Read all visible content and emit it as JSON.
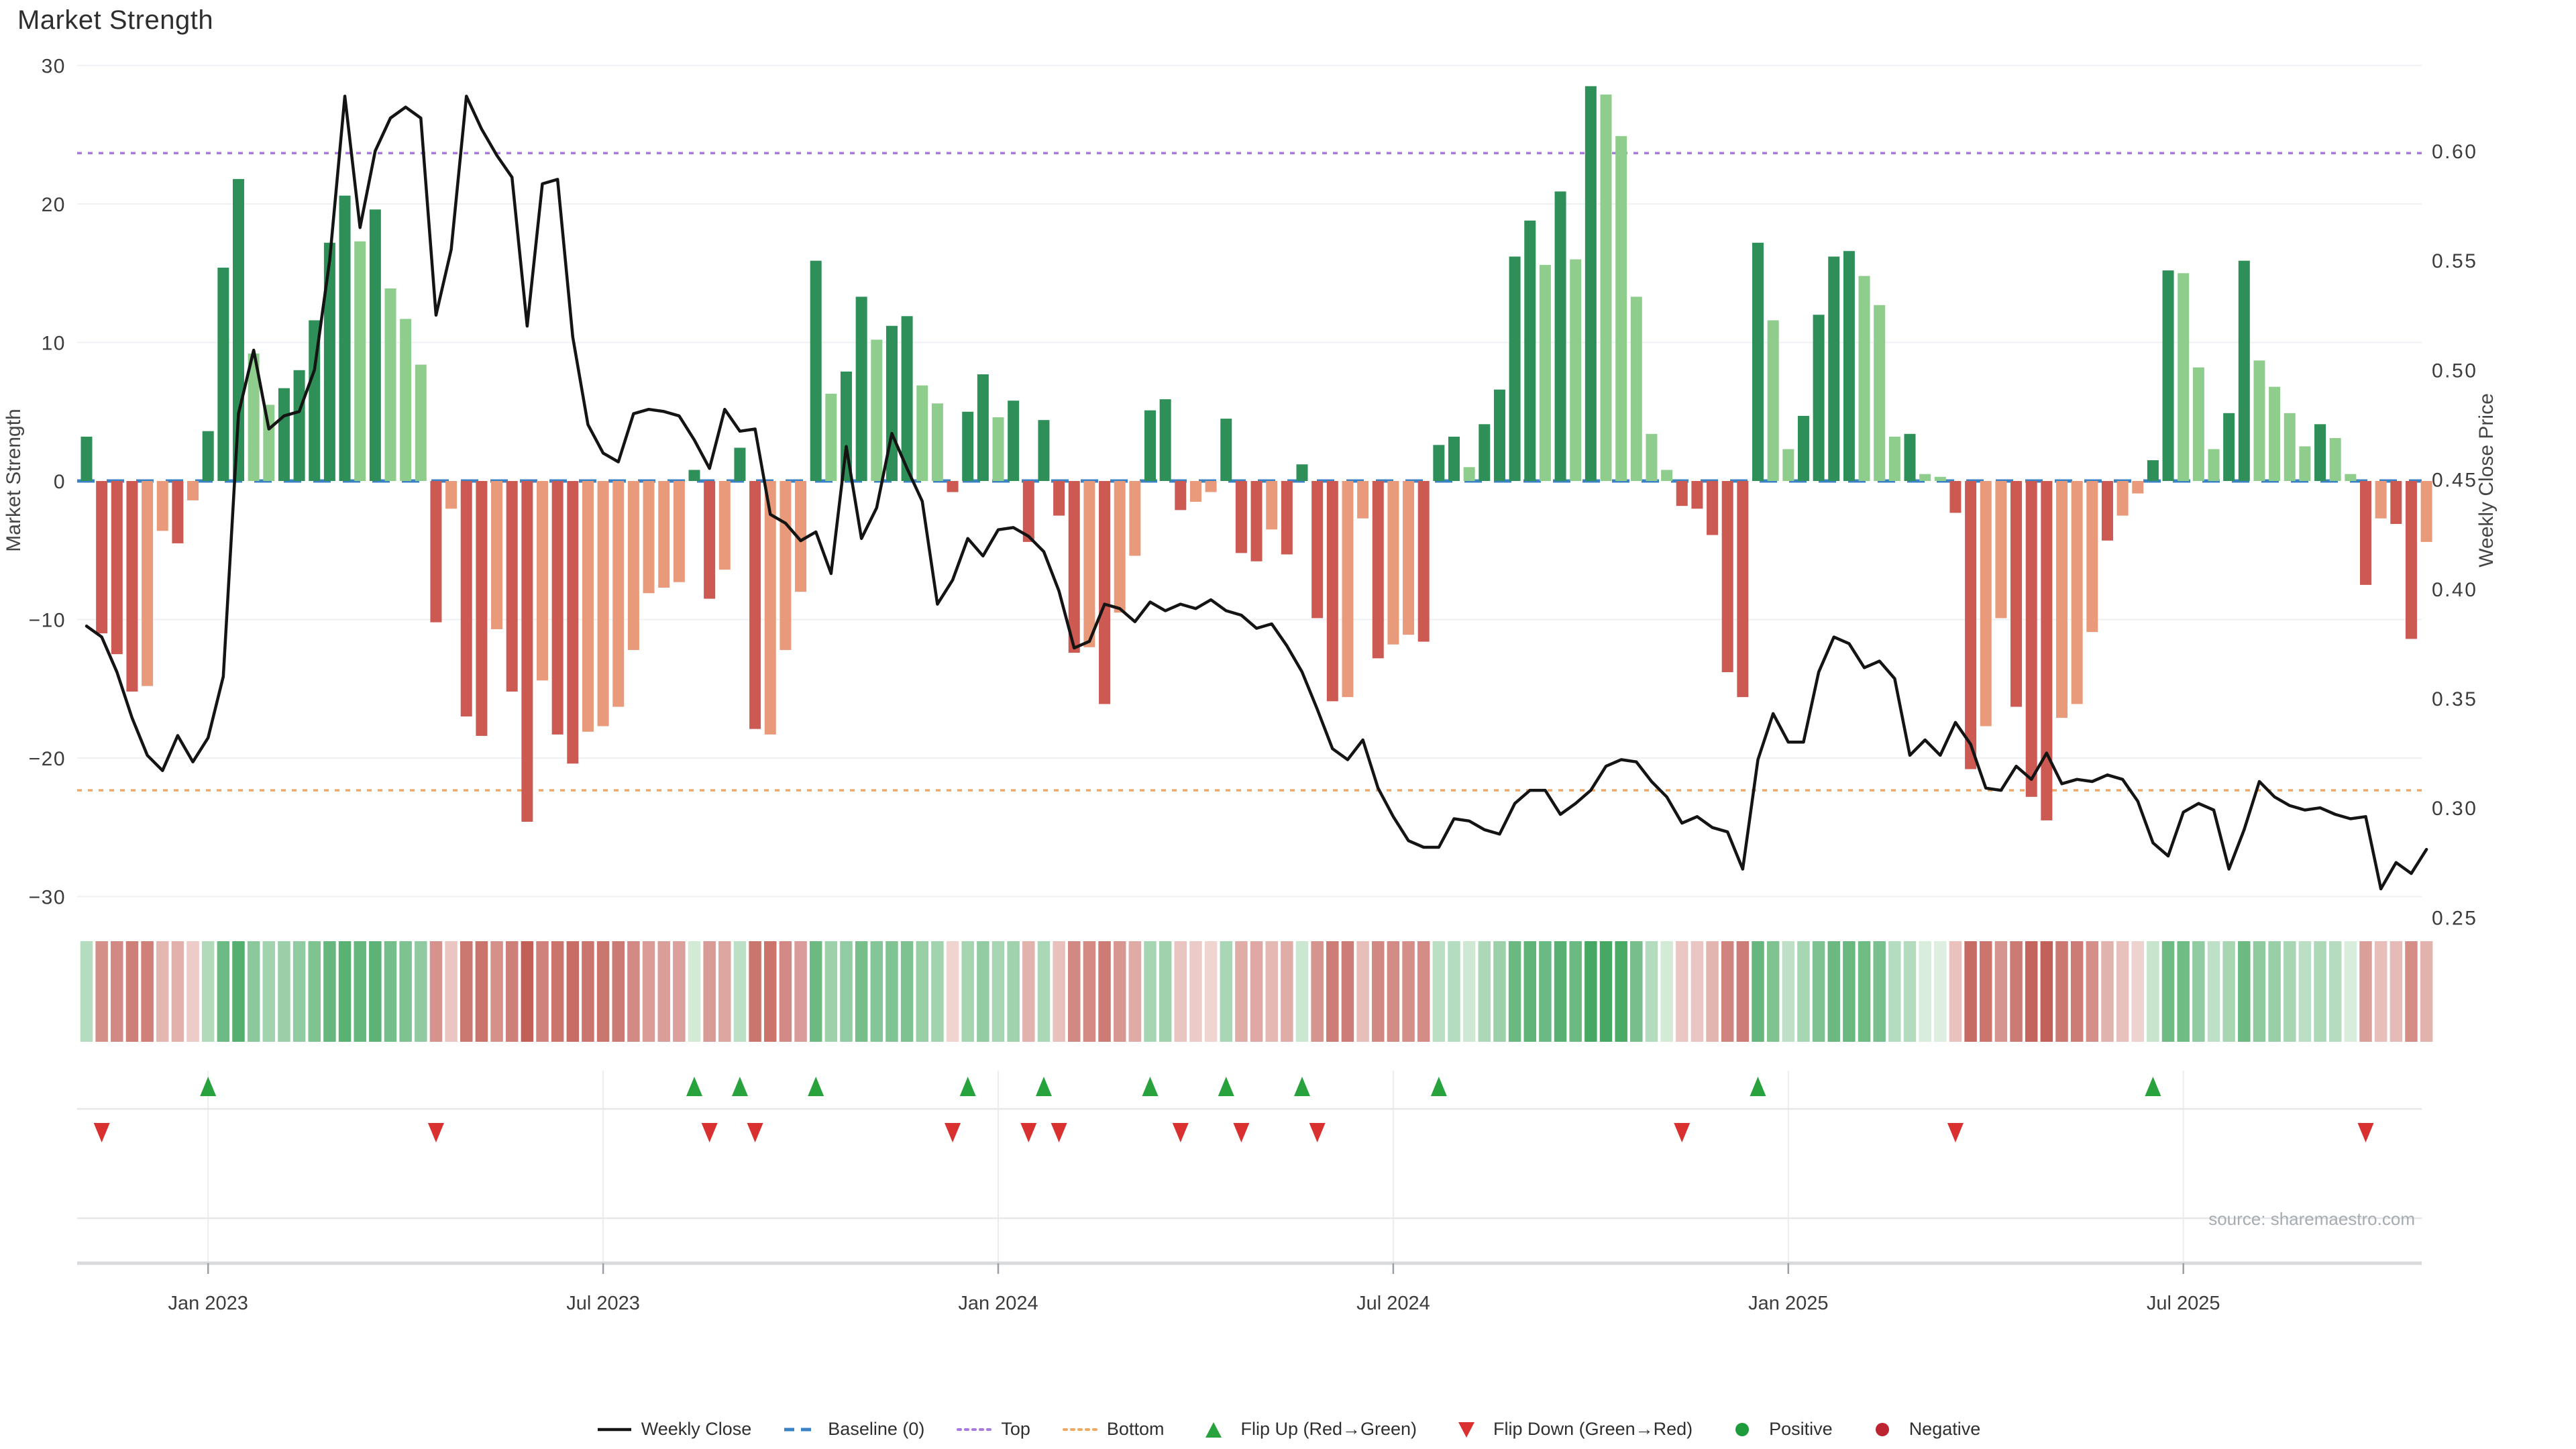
{
  "title": "Market Strength",
  "source_note": "source: sharemaestro.com",
  "legend": {
    "items": [
      {
        "label": "Weekly Close",
        "type": "line",
        "color": "#141414"
      },
      {
        "label": "Baseline (0)",
        "type": "dashed",
        "color": "#3b82c4"
      },
      {
        "label": "Top",
        "type": "dotted",
        "color": "#a879e0"
      },
      {
        "label": "Bottom",
        "type": "dotted",
        "color": "#f0a964"
      },
      {
        "label": "Flip Up (Red→Green)",
        "type": "triangle-up",
        "color": "#27a23c"
      },
      {
        "label": "Flip Down (Green→Red)",
        "type": "triangle-down",
        "color": "#d93030"
      },
      {
        "label": "Positive",
        "type": "circle",
        "color": "#1e9c3c"
      },
      {
        "label": "Negative",
        "type": "circle",
        "color": "#bc2432"
      }
    ]
  },
  "chart_data": {
    "type": "bar",
    "subtype": "weekly bars + price line + heatmap strip + flip markers",
    "title": "Market Strength",
    "start_date": "2022-11-07",
    "frequency": "weekly",
    "weeks": 155,
    "y_left": {
      "label": "Market Strength",
      "ticks": [
        30,
        20,
        10,
        0,
        -10,
        -20,
        -30
      ],
      "min": -30,
      "max": 30
    },
    "y_right": {
      "label": "Weekly Close Price",
      "ticks": [
        0.6,
        0.55,
        0.5,
        0.45,
        0.4,
        0.35,
        0.3,
        0.25
      ]
    },
    "x_ticks": [
      {
        "week": 9,
        "label": "Jan 2023"
      },
      {
        "week": 35,
        "label": "Jul 2023"
      },
      {
        "week": 61,
        "label": "Jan 2024"
      },
      {
        "week": 87,
        "label": "Jul 2024"
      },
      {
        "week": 113,
        "label": "Jan 2025"
      },
      {
        "week": 139,
        "label": "Jul 2025"
      }
    ],
    "baseline": {
      "label": "Baseline (0)",
      "value": 0
    },
    "top_line": {
      "label": "Top",
      "price": 0.599,
      "strength_equiv": 23.5
    },
    "bottom_line": {
      "label": "Bottom",
      "price": 0.308,
      "strength_equiv": -22.3
    },
    "strength": [
      3.2,
      -11.0,
      -12.5,
      -15.2,
      -14.8,
      -3.6,
      -4.5,
      -1.4,
      3.6,
      15.4,
      21.8,
      9.2,
      5.5,
      6.7,
      8.0,
      11.6,
      17.2,
      20.6,
      17.3,
      19.6,
      13.9,
      11.7,
      8.4,
      -10.2,
      -2.0,
      -17.0,
      -18.4,
      -10.7,
      -15.2,
      -24.6,
      -14.4,
      -18.3,
      -20.4,
      -18.1,
      -17.7,
      -16.3,
      -12.2,
      -8.1,
      -7.7,
      -7.3,
      0.8,
      -8.5,
      -6.4,
      2.4,
      -17.9,
      -18.3,
      -12.2,
      -8.0,
      15.9,
      6.3,
      7.9,
      13.3,
      10.2,
      11.2,
      11.9,
      6.9,
      5.6,
      -0.8,
      5.0,
      7.7,
      4.6,
      5.8,
      -4.4,
      4.4,
      -2.5,
      -12.4,
      -12.0,
      -16.1,
      -9.5,
      -5.4,
      5.1,
      5.9,
      -2.1,
      -1.5,
      -0.8,
      4.5,
      -5.2,
      -5.8,
      -3.5,
      -5.3,
      1.2,
      -9.9,
      -15.9,
      -15.6,
      -2.7,
      -12.8,
      -11.8,
      -11.1,
      -11.6,
      2.6,
      3.2,
      1.0,
      4.1,
      6.6,
      16.2,
      18.8,
      15.6,
      20.9,
      16.0,
      28.5,
      27.9,
      24.9,
      13.3,
      3.4,
      0.8,
      -1.8,
      -2.0,
      -3.9,
      -13.8,
      -15.6,
      17.2,
      11.6,
      2.3,
      4.7,
      12.0,
      16.2,
      16.6,
      14.8,
      12.7,
      3.2,
      3.4,
      0.5,
      0.3,
      -2.3,
      -20.8,
      -17.7,
      -9.9,
      -16.3,
      -22.8,
      -24.5,
      -17.1,
      -16.1,
      -10.9,
      -4.3,
      -2.5,
      -0.9,
      1.5,
      15.2,
      15.0,
      8.2,
      2.3,
      4.9,
      15.9,
      8.7,
      6.8,
      4.9,
      2.5,
      4.1,
      3.1,
      0.5,
      -7.5,
      -2.7,
      -3.1,
      -11.4,
      -4.4
    ],
    "tone": [
      "d",
      "r",
      "r",
      "r",
      "s",
      "s",
      "r",
      "s",
      "d",
      "d",
      "d",
      "l",
      "l",
      "d",
      "d",
      "d",
      "d",
      "d",
      "l",
      "d",
      "l",
      "l",
      "l",
      "r",
      "s",
      "r",
      "r",
      "s",
      "r",
      "r",
      "s",
      "r",
      "r",
      "s",
      "s",
      "s",
      "s",
      "s",
      "s",
      "s",
      "d",
      "r",
      "s",
      "d",
      "r",
      "s",
      "s",
      "s",
      "d",
      "l",
      "d",
      "d",
      "l",
      "d",
      "d",
      "l",
      "l",
      "r",
      "d",
      "d",
      "l",
      "d",
      "r",
      "d",
      "r",
      "r",
      "s",
      "r",
      "s",
      "s",
      "d",
      "d",
      "r",
      "s",
      "s",
      "d",
      "r",
      "r",
      "s",
      "r",
      "d",
      "r",
      "r",
      "s",
      "s",
      "r",
      "s",
      "s",
      "r",
      "d",
      "d",
      "l",
      "d",
      "d",
      "d",
      "d",
      "l",
      "d",
      "l",
      "d",
      "l",
      "l",
      "l",
      "l",
      "l",
      "r",
      "r",
      "r",
      "r",
      "r",
      "d",
      "l",
      "l",
      "d",
      "d",
      "d",
      "d",
      "l",
      "l",
      "l",
      "d",
      "l",
      "l",
      "r",
      "r",
      "s",
      "s",
      "r",
      "r",
      "r",
      "s",
      "s",
      "s",
      "r",
      "s",
      "s",
      "d",
      "d",
      "l",
      "l",
      "l",
      "d",
      "d",
      "l",
      "l",
      "l",
      "l",
      "d",
      "l",
      "l",
      "r",
      "s",
      "r",
      "r",
      "s"
    ],
    "price": [
      0.383,
      0.378,
      0.362,
      0.341,
      0.324,
      0.317,
      0.333,
      0.321,
      0.332,
      0.36,
      0.48,
      0.509,
      0.473,
      0.479,
      0.481,
      0.5,
      0.55,
      0.625,
      0.565,
      0.6,
      0.615,
      0.62,
      0.615,
      0.525,
      0.555,
      0.625,
      0.61,
      0.598,
      0.588,
      0.52,
      0.585,
      0.587,
      0.515,
      0.475,
      0.462,
      0.458,
      0.48,
      0.482,
      0.481,
      0.479,
      0.468,
      0.455,
      0.482,
      0.472,
      0.473,
      0.434,
      0.43,
      0.422,
      0.426,
      0.407,
      0.465,
      0.423,
      0.437,
      0.471,
      0.455,
      0.44,
      0.393,
      0.404,
      0.423,
      0.415,
      0.427,
      0.428,
      0.424,
      0.417,
      0.399,
      0.373,
      0.376,
      0.393,
      0.391,
      0.385,
      0.394,
      0.39,
      0.393,
      0.391,
      0.395,
      0.39,
      0.388,
      0.382,
      0.384,
      0.374,
      0.362,
      0.345,
      0.327,
      0.322,
      0.331,
      0.309,
      0.296,
      0.285,
      0.282,
      0.282,
      0.295,
      0.294,
      0.29,
      0.288,
      0.302,
      0.308,
      0.308,
      0.297,
      0.302,
      0.308,
      0.319,
      0.322,
      0.321,
      0.312,
      0.305,
      0.293,
      0.296,
      0.291,
      0.289,
      0.272,
      0.322,
      0.343,
      0.33,
      0.33,
      0.362,
      0.378,
      0.375,
      0.364,
      0.367,
      0.359,
      0.324,
      0.331,
      0.324,
      0.339,
      0.329,
      0.309,
      0.308,
      0.319,
      0.313,
      0.325,
      0.311,
      0.313,
      0.312,
      0.315,
      0.313,
      0.303,
      0.284,
      0.278,
      0.298,
      0.302,
      0.299,
      0.272,
      0.29,
      0.312,
      0.305,
      0.301,
      0.299,
      0.3,
      0.297,
      0.295,
      0.296,
      0.263,
      0.275,
      0.27,
      0.281
    ],
    "flip_up_weeks": [
      9,
      41,
      44,
      49,
      59,
      64,
      71,
      76,
      81,
      90,
      111,
      137
    ],
    "flip_down_weeks": [
      2,
      24,
      42,
      45,
      58,
      63,
      65,
      73,
      77,
      82,
      106,
      124,
      151
    ],
    "colors": {
      "bar_green_dark": "#2e9058",
      "bar_green_light": "#8fcd8d",
      "bar_red": "#cc5a52",
      "bar_salmon": "#e89a7a",
      "line": "#141414",
      "baseline": "#3b82c4",
      "top": "#a879e0",
      "bottom": "#f0a964",
      "flip_up": "#27a23c",
      "flip_down": "#d93030",
      "heat_pos": "#37a156",
      "heat_neg": "#bb4f46",
      "heat_pos_pale": "#eef7ee",
      "heat_neg_pale": "#f9ebe9",
      "grid": "#eef0f3",
      "panel_grid": "#e5e7e9",
      "axis_line": "#d8dadc",
      "tick_text": "#3c3c3c",
      "axis_title_text": "#454545",
      "source_text": "#a6acb1"
    }
  }
}
